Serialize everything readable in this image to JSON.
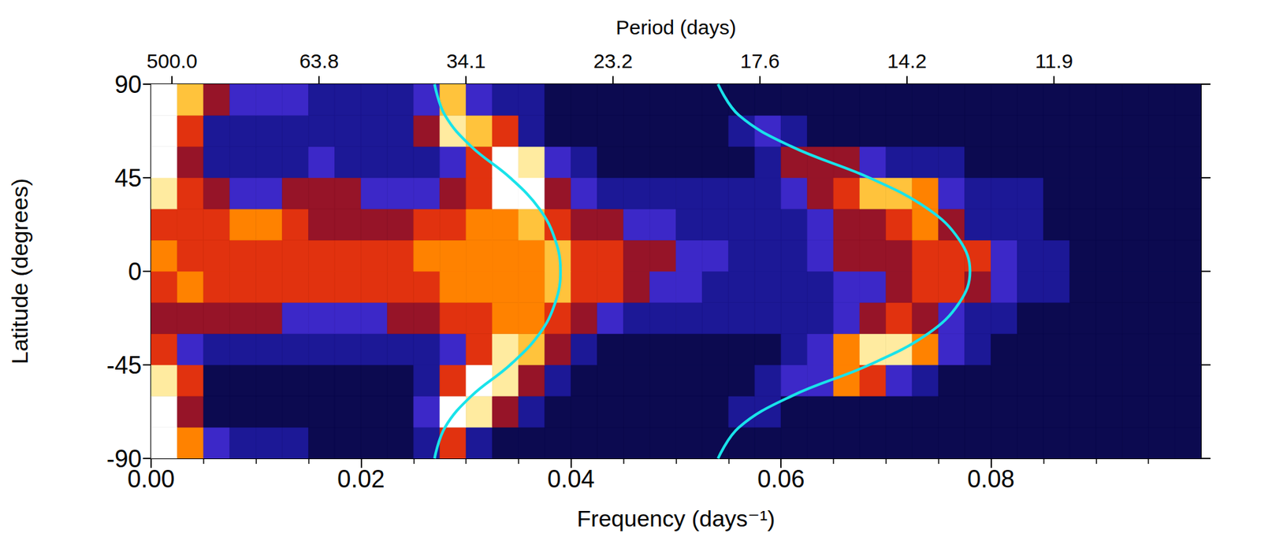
{
  "chart_data": {
    "type": "heatmap",
    "xlabel": "Frequency (days⁻¹)",
    "ylabel": "Latitude (degrees)",
    "x2label": "Period (days)",
    "xlim": [
      0,
      0.1
    ],
    "xticks": [
      {
        "value": 0,
        "label": "0.00"
      },
      {
        "value": 0.02,
        "label": "0.02"
      },
      {
        "value": 0.04,
        "label": "0.04"
      },
      {
        "value": 0.06,
        "label": "0.06"
      },
      {
        "value": 0.08,
        "label": "0.08"
      }
    ],
    "x2lim": [
      0,
      0.1
    ],
    "x2ticks": [
      {
        "value": 0.002,
        "label": "500.0"
      },
      {
        "value": 0.016,
        "label": "63.8"
      },
      {
        "value": 0.03,
        "label": "34.1"
      },
      {
        "value": 0.044,
        "label": "23.2"
      },
      {
        "value": 0.058,
        "label": "17.6"
      },
      {
        "value": 0.072,
        "label": "14.2"
      },
      {
        "value": 0.086,
        "label": "11.9"
      }
    ],
    "ylim": [
      -90,
      90
    ],
    "yticks": [
      -90,
      -45,
      0,
      45,
      90
    ],
    "grid": false,
    "x_edges": [
      0,
      0.0025,
      0.005,
      0.0075,
      0.01,
      0.0125,
      0.015,
      0.0175,
      0.02,
      0.0225,
      0.025,
      0.0275,
      0.03,
      0.0325,
      0.035,
      0.0375,
      0.04,
      0.0425,
      0.045,
      0.0475,
      0.05,
      0.0525,
      0.055,
      0.0575,
      0.06,
      0.0625,
      0.065,
      0.0675,
      0.07,
      0.0725,
      0.075,
      0.0775,
      0.08,
      0.0825,
      0.085,
      0.0875,
      0.09,
      0.0925,
      0.095,
      0.0975,
      0.1
    ],
    "y_edges": [
      -90,
      -75,
      -60,
      -45,
      -30,
      -15,
      0,
      15,
      30,
      45,
      60,
      75,
      90
    ],
    "zlim": [
      0,
      10
    ],
    "power": [
      [
        10,
        7,
        4,
        3,
        3,
        3,
        2,
        2,
        2,
        2,
        3,
        6,
        3,
        2,
        2,
        2,
        2,
        2,
        2,
        2,
        2,
        2,
        2,
        2,
        2,
        2,
        2,
        2,
        2,
        2,
        2,
        2,
        2,
        2,
        2,
        2,
        2,
        2,
        2,
        2
      ],
      [
        10,
        5,
        2,
        2,
        2,
        2,
        2,
        2,
        2,
        2,
        4,
        10,
        9,
        5,
        3,
        2,
        2,
        2,
        2,
        2,
        2,
        2,
        3,
        3,
        2,
        2,
        2,
        2,
        2,
        2,
        2,
        2,
        2,
        2,
        2,
        2,
        2,
        2,
        2,
        2
      ],
      [
        9,
        6,
        2,
        2,
        2,
        2,
        2,
        2,
        2,
        2,
        3,
        6,
        10,
        9,
        5,
        3,
        2,
        2,
        2,
        2,
        2,
        2,
        2,
        3,
        4,
        4,
        7,
        6,
        4,
        3,
        2,
        2,
        2,
        2,
        2,
        2,
        2,
        2,
        2,
        2
      ],
      [
        6,
        4,
        3,
        3,
        3,
        3,
        3,
        3,
        3,
        3,
        3,
        4,
        6,
        9,
        8,
        5,
        3,
        2,
        2,
        2,
        2,
        2,
        2,
        2,
        3,
        4,
        7,
        9,
        9,
        7,
        4,
        3,
        2,
        2,
        2,
        2,
        2,
        2,
        2,
        2
      ],
      [
        5,
        5,
        5,
        5,
        5,
        4,
        4,
        4,
        4,
        5,
        5,
        6,
        6,
        7,
        7,
        6,
        5,
        4,
        3,
        3,
        3,
        3,
        3,
        3,
        3,
        3,
        4,
        5,
        6,
        5,
        4,
        3,
        3,
        2,
        2,
        2,
        2,
        2,
        2,
        2
      ],
      [
        6,
        7,
        6,
        6,
        6,
        6,
        6,
        6,
        6,
        6,
        6,
        7,
        7,
        7,
        7,
        8,
        6,
        6,
        5,
        4,
        4,
        3,
        3,
        3,
        3,
        3,
        4,
        4,
        5,
        6,
        6,
        5,
        4,
        3,
        3,
        2,
        2,
        2,
        2,
        2
      ],
      [
        7,
        6,
        6,
        6,
        6,
        6,
        6,
        6,
        6,
        6,
        7,
        7,
        7,
        7,
        7,
        8,
        6,
        6,
        5,
        5,
        4,
        4,
        3,
        3,
        3,
        4,
        5,
        5,
        5,
        6,
        6,
        6,
        4,
        3,
        3,
        2,
        2,
        2,
        2,
        2
      ],
      [
        6,
        6,
        6,
        7,
        7,
        6,
        5,
        5,
        5,
        5,
        6,
        6,
        7,
        7,
        8,
        6,
        5,
        5,
        4,
        4,
        3,
        3,
        3,
        3,
        3,
        4,
        5,
        5,
        6,
        7,
        5,
        3,
        3,
        3,
        2,
        2,
        2,
        2,
        2,
        2
      ],
      [
        9,
        6,
        5,
        4,
        4,
        5,
        5,
        5,
        4,
        4,
        4,
        5,
        6,
        10,
        10,
        5,
        4,
        3,
        3,
        3,
        3,
        3,
        3,
        3,
        4,
        5,
        6,
        8,
        8,
        7,
        4,
        3,
        3,
        3,
        2,
        2,
        2,
        2,
        2,
        2
      ],
      [
        10,
        5,
        3,
        3,
        3,
        3,
        4,
        3,
        3,
        3,
        3,
        4,
        6,
        10,
        9,
        4,
        3,
        2,
        2,
        2,
        2,
        2,
        2,
        3,
        5,
        5,
        5,
        4,
        3,
        3,
        3,
        2,
        2,
        2,
        2,
        2,
        2,
        2,
        2,
        2
      ],
      [
        10,
        6,
        3,
        3,
        3,
        3,
        3,
        3,
        3,
        3,
        5,
        9,
        8,
        6,
        3,
        2,
        2,
        2,
        2,
        2,
        2,
        2,
        3,
        4,
        3,
        2,
        2,
        2,
        2,
        2,
        2,
        2,
        2,
        2,
        2,
        2,
        2,
        2,
        2,
        2
      ],
      [
        10,
        8,
        5,
        4,
        4,
        4,
        3,
        3,
        3,
        3,
        4,
        8,
        4,
        3,
        3,
        2,
        2,
        2,
        2,
        2,
        2,
        2,
        2,
        2,
        2,
        2,
        2,
        2,
        2,
        2,
        2,
        2,
        2,
        2,
        2,
        2,
        2,
        2,
        2,
        2
      ]
    ],
    "curves": [
      {
        "type": "line",
        "color": "#19e3ea",
        "line_style": "solid",
        "x": [
          0.027,
          0.028,
          0.0305,
          0.0342,
          0.037,
          0.0385,
          0.039,
          0.0385,
          0.037,
          0.0342,
          0.0305,
          0.028,
          0.027
        ],
        "y": [
          -90,
          -75,
          -60,
          -45,
          -30,
          -15,
          0,
          15,
          30,
          45,
          60,
          75,
          90
        ]
      },
      {
        "type": "line",
        "color": "#19e3ea",
        "line_style": "solid",
        "x": [
          0.054,
          0.056,
          0.061,
          0.0684,
          0.074,
          0.077,
          0.078,
          0.077,
          0.074,
          0.0684,
          0.061,
          0.056,
          0.054
        ],
        "y": [
          -90,
          -75,
          -60,
          -45,
          -30,
          -15,
          0,
          15,
          30,
          45,
          60,
          75,
          90
        ]
      }
    ]
  }
}
